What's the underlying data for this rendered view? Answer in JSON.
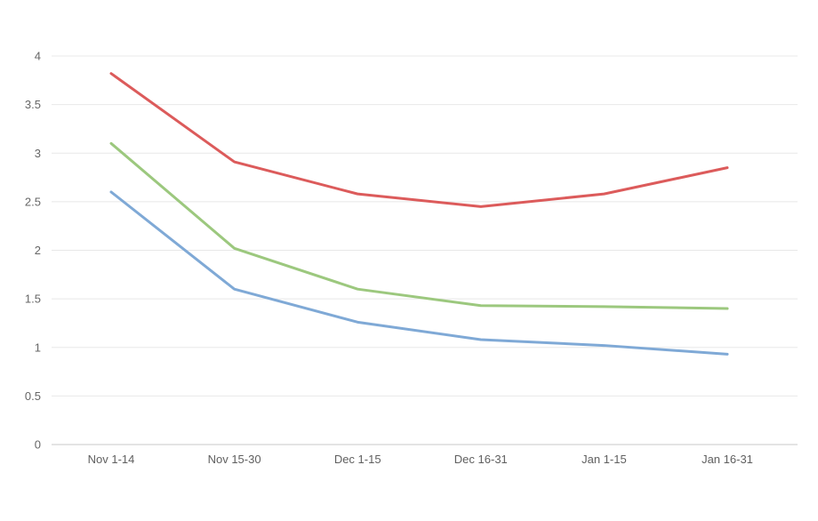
{
  "chart_data": {
    "type": "line",
    "title": "",
    "categories": [
      "Nov 1-14",
      "Nov 15-30",
      "Dec 1-15",
      "Dec 16-31",
      "Jan 1-15",
      "Jan 16-31"
    ],
    "series": [
      {
        "name": "red",
        "color": "#dc5b5b",
        "values": [
          3.82,
          2.91,
          2.58,
          2.45,
          2.58,
          2.85
        ]
      },
      {
        "name": "green",
        "color": "#9cc87e",
        "values": [
          3.1,
          2.02,
          1.6,
          1.43,
          1.42,
          1.4
        ]
      },
      {
        "name": "blue",
        "color": "#7fa9d6",
        "values": [
          2.6,
          1.6,
          1.26,
          1.08,
          1.02,
          0.93
        ]
      }
    ],
    "xlabel": "",
    "ylabel": "",
    "ylim": [
      0,
      4
    ],
    "yticks": [
      0,
      0.5,
      1,
      1.5,
      2,
      2.5,
      3,
      3.5,
      4
    ],
    "ytick_labels": [
      "0",
      "0.5",
      "1",
      "1.5",
      "2",
      "2.5",
      "3",
      "3.5",
      "4"
    ],
    "grid": "horizontal",
    "legend": "none",
    "gridline_color": "#e8e8e8",
    "axis_line_color": "#c9c9c9",
    "tick_label_color": "#666666",
    "background_color": "#ffffff"
  }
}
